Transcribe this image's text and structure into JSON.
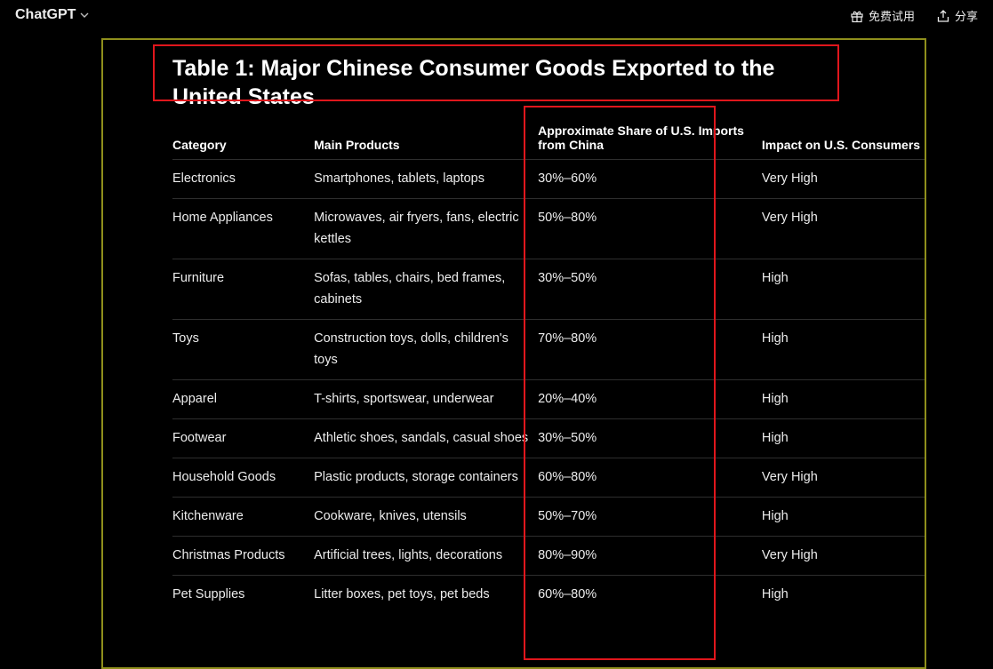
{
  "header": {
    "app_title": "ChatGPT",
    "try_free_label": "免费试用",
    "share_label": "分享"
  },
  "content": {
    "heading": "Table 1: Major Chinese Consumer Goods Exported to the United States",
    "columns": [
      "Category",
      "Main Products",
      "Approximate Share of U.S. Imports from China",
      "Impact on U.S. Consumers"
    ],
    "rows": [
      {
        "category": "Electronics",
        "products": "Smartphones, tablets, laptops",
        "share": "30%–60%",
        "impact": "Very High"
      },
      {
        "category": "Home Appliances",
        "products": "Microwaves, air fryers, fans, electric kettles",
        "share": "50%–80%",
        "impact": "Very High"
      },
      {
        "category": "Furniture",
        "products": "Sofas, tables, chairs, bed frames, cabinets",
        "share": "30%–50%",
        "impact": "High"
      },
      {
        "category": "Toys",
        "products": "Construction toys, dolls, children's toys",
        "share": "70%–80%",
        "impact": "High"
      },
      {
        "category": "Apparel",
        "products": "T-shirts, sportswear, underwear",
        "share": "20%–40%",
        "impact": "High"
      },
      {
        "category": "Footwear",
        "products": "Athletic shoes, sandals, casual shoes",
        "share": "30%–50%",
        "impact": "High"
      },
      {
        "category": "Household Goods",
        "products": "Plastic products, storage containers",
        "share": "60%–80%",
        "impact": "Very High"
      },
      {
        "category": "Kitchenware",
        "products": "Cookware, knives, utensils",
        "share": "50%–70%",
        "impact": "High"
      },
      {
        "category": "Christmas Products",
        "products": "Artificial trees, lights, decorations",
        "share": "80%–90%",
        "impact": "Very High"
      },
      {
        "category": "Pet Supplies",
        "products": "Litter boxes, pet toys, pet beds",
        "share": "60%–80%",
        "impact": "High"
      }
    ]
  },
  "annotations": {
    "frame_color": "#8f8f1c",
    "highlight_color": "#e0161c"
  }
}
